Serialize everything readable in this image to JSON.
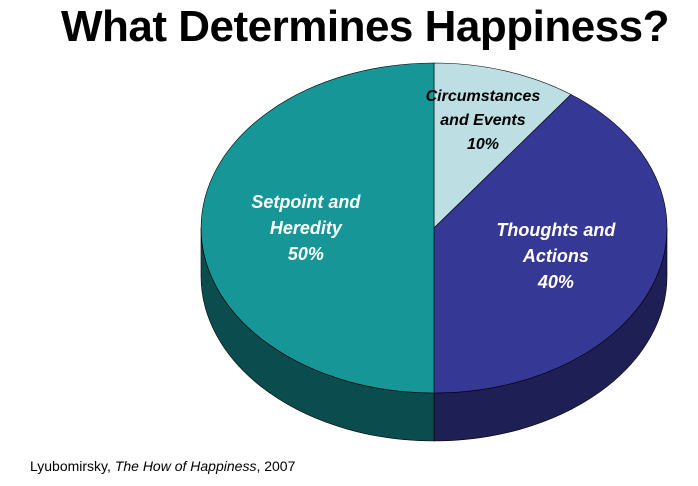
{
  "chart_data": {
    "type": "pie",
    "title": "What Determines Happiness?",
    "categories": [
      "Circumstances and Events",
      "Thoughts and Actions",
      "Setpoint and Heredity"
    ],
    "values": [
      10,
      40,
      50
    ],
    "value_labels": [
      "10%",
      "40%",
      "50%"
    ],
    "colors": [
      "#bddfe3",
      "#363896",
      "#179698"
    ],
    "side_colors": [
      "#7fa8ad",
      "#1e1f55",
      "#0b4c4e"
    ],
    "label_colors": [
      "#000000",
      "#ffffff",
      "#ffffff"
    ],
    "source": [
      "Lyubomirsky, ",
      "The How of Happiness",
      ", 2007"
    ]
  }
}
